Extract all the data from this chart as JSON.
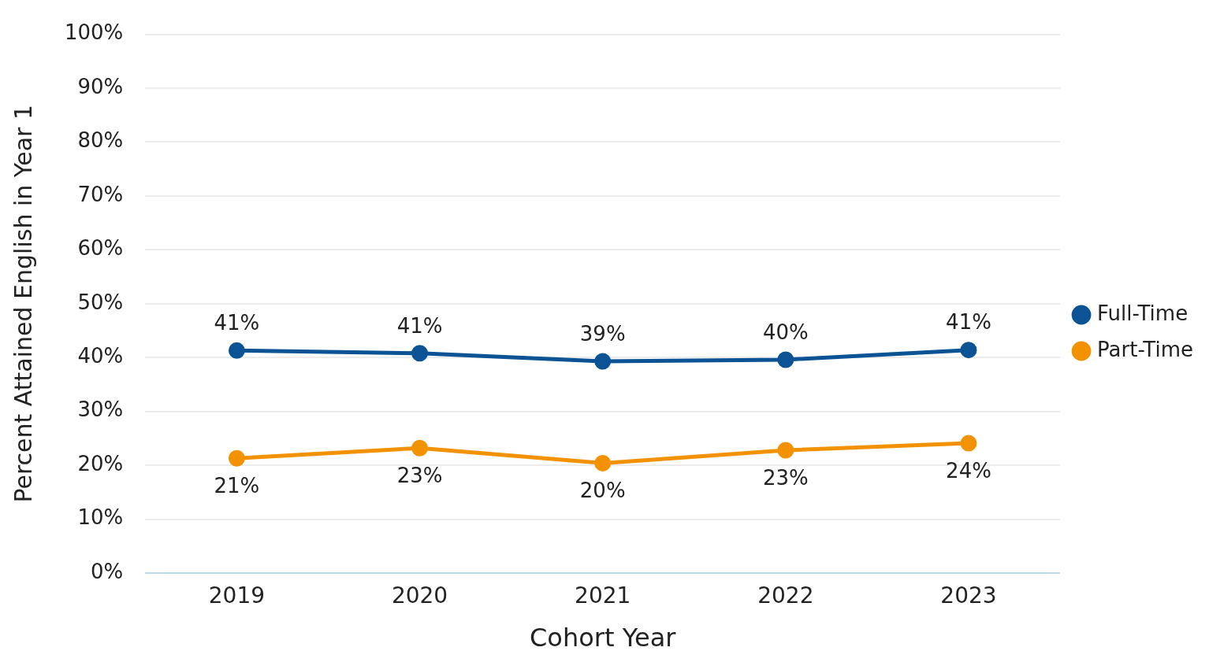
{
  "chart_data": {
    "type": "line",
    "xlabel": "Cohort Year",
    "ylabel": "Percent Attained English in Year 1",
    "categories": [
      "2019",
      "2020",
      "2021",
      "2022",
      "2023"
    ],
    "series": [
      {
        "name": "Full-Time",
        "color": "#0b5394",
        "values": [
          41.3,
          40.8,
          39.3,
          39.6,
          41.4
        ],
        "value_labels": [
          "41%",
          "41%",
          "39%",
          "40%",
          "41%"
        ]
      },
      {
        "name": "Part-Time",
        "color": "#f39200",
        "values": [
          21.3,
          23.2,
          20.4,
          22.8,
          24.1
        ],
        "value_labels": [
          "21%",
          "23%",
          "20%",
          "23%",
          "24%"
        ]
      }
    ],
    "ylim": [
      0,
      100
    ],
    "yticks": [
      {
        "value": 0,
        "label": "0%"
      },
      {
        "value": 10,
        "label": "10%"
      },
      {
        "value": 20,
        "label": "20%"
      },
      {
        "value": 30,
        "label": "30%"
      },
      {
        "value": 40,
        "label": "40%"
      },
      {
        "value": 50,
        "label": "50%"
      },
      {
        "value": 60,
        "label": "60%"
      },
      {
        "value": 70,
        "label": "70%"
      },
      {
        "value": 80,
        "label": "80%"
      },
      {
        "value": 90,
        "label": "90%"
      },
      {
        "value": 100,
        "label": "100%"
      }
    ],
    "grid": "y",
    "legend": "right",
    "marker": "circle",
    "line_style": "solid"
  }
}
